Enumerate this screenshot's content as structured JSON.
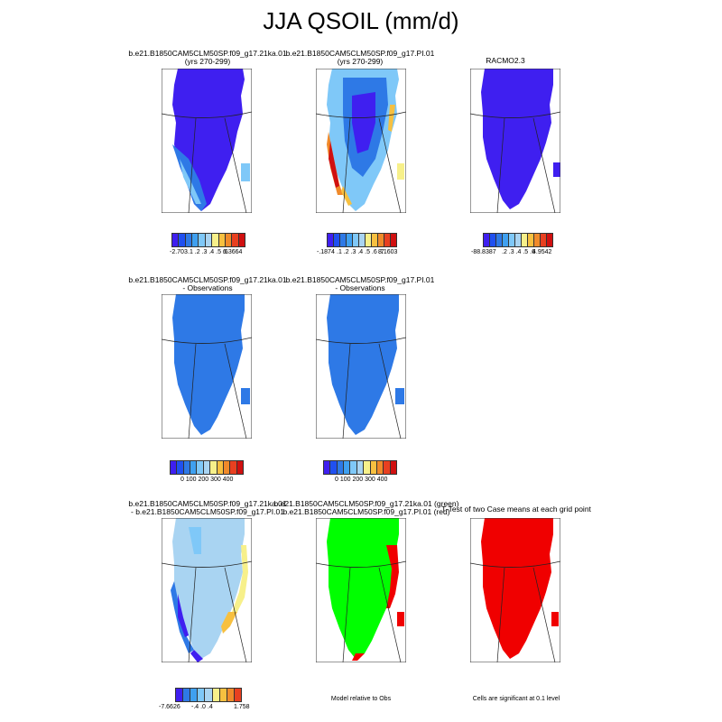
{
  "title": "JJA QSOIL (mm/d)",
  "colors": {
    "deep_blue": "#3F1FF0",
    "mid_blue": "#2E79E6",
    "light_blue": "#A9D4F2",
    "green": "#00FF00",
    "red": "#F00000",
    "yellow": "#F7E27A",
    "orange": "#F0A020"
  },
  "panels": [
    {
      "title1": "b.e21.B1850CAM5CLM50SP.f09_g17.21ka.01",
      "title2": "(yrs 270-299)",
      "fill": "#3F1FF0",
      "cbar": {
        "min_label": "-2.703",
        "mid_label": ".1 .2 .3 .4 .5 .6",
        "max_label": "6.3664"
      }
    },
    {
      "title1": "b.e21.B1850CAM5CLM50SP.f09_g17.PI.01",
      "title2": "(yrs 270-299)",
      "fill": "#2E79E6",
      "cbar": {
        "min_label": "-.1874",
        "mid_label": ".1 .2 .3 .4 .5 .6 .7",
        "max_label": "8.1603"
      }
    },
    {
      "title1": "RACMO2.3",
      "title2": "",
      "fill": "#3F1FF0",
      "cbar": {
        "min_label": "-88.8387",
        "mid_label": ".2 .3 .4 .5 .6",
        "max_label": "4.9542"
      }
    },
    {
      "title1": "b.e21.B1850CAM5CLM50SP.f09_g17.21ka.01",
      "title2": "- Observations",
      "fill": "#2E79E6",
      "cbar": {
        "min_label": "",
        "mid_label": "0   100 200 300 400",
        "max_label": ""
      }
    },
    {
      "title1": "b.e21.B1850CAM5CLM50SP.f09_g17.PI.01",
      "title2": "- Observations",
      "fill": "#2E79E6",
      "cbar": {
        "min_label": "",
        "mid_label": "0   100 200 300 400",
        "max_label": ""
      }
    },
    {
      "title1": "b.e21.B1850CAM5CLM50SP.f09_g17.21ka.01",
      "title2": "- b.e21.B1850CAM5CLM50SP.f09_g17.PI.01",
      "fill": "#A9D4F2",
      "cbar": {
        "min_label": "-7.6626",
        "mid_label": "-.4   .0   .4",
        "max_label": "1.758"
      }
    },
    {
      "title1": "b.e21.B1850CAM5CLM50SP.f09_g17.21ka.01 (green)",
      "title2": "b.e21.B1850CAM5CLM50SP.f09_g17.PI.01 (red)",
      "fill": "#00FF00",
      "note": "Model relative to Obs"
    },
    {
      "title1": "T-Test of two Case means at each grid point",
      "title2": "",
      "fill": "#F00000",
      "note": "Cells are significant at 0.1 level"
    }
  ],
  "colorbar_palette": [
    "#3F1FF0",
    "#2050F0",
    "#2E79E6",
    "#3FA0F0",
    "#7FC8F8",
    "#A9D4F2",
    "#F7F08A",
    "#F7C040",
    "#F08A2A",
    "#E84020",
    "#D01010"
  ]
}
